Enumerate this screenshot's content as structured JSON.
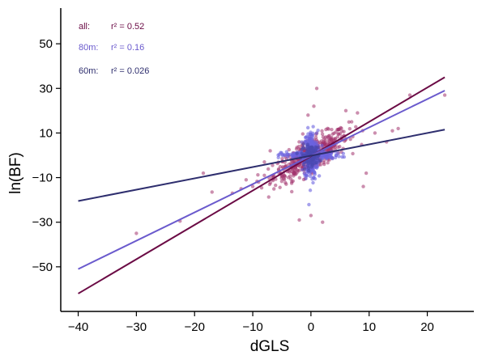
{
  "chart_data": {
    "type": "scatter",
    "xlabel": "dGLS",
    "ylabel": "ln(BF)",
    "xlim": [
      -43,
      28
    ],
    "ylim": [
      -70,
      66
    ],
    "xticks": [
      -40,
      -30,
      -20,
      -10,
      0,
      10,
      20
    ],
    "yticks": [
      -50,
      -30,
      -10,
      10,
      30,
      50
    ],
    "x_tick_labels": [
      "−40",
      "−30",
      "−20",
      "−10",
      "0",
      "10",
      "20"
    ],
    "y_tick_labels": [
      "−50",
      "−30",
      "−10",
      "10",
      "30",
      "50"
    ],
    "grid": false,
    "legend_position": "top-left",
    "colors": {
      "all": "#6b0b45",
      "all_points": "#a3336d",
      "m80": "#6a5acd",
      "m80_points": "#6b63e0",
      "m60": "#2e2e6e",
      "m60_points": "#4a48b0"
    },
    "legend": [
      {
        "label": "all:",
        "stat": "r² = 0.52",
        "color": "#6b0b45"
      },
      {
        "label": "80m:",
        "stat": "r² = 0.16",
        "color": "#6a5acd"
      },
      {
        "label": "60m:",
        "stat": "r² = 0.026",
        "color": "#2e2e6e"
      }
    ],
    "series": [
      {
        "name": "all",
        "r2": 0.52,
        "fit_line": {
          "x": [
            -40,
            23
          ],
          "y": [
            -62,
            35
          ]
        }
      },
      {
        "name": "80m",
        "r2": 0.16,
        "fit_line": {
          "x": [
            -40,
            23
          ],
          "y": [
            -51,
            29
          ]
        }
      },
      {
        "name": "60m",
        "r2": 0.026,
        "fit_line": {
          "x": [
            -40,
            23
          ],
          "y": [
            -20.5,
            11.5
          ]
        }
      }
    ],
    "outlier_points": [
      [
        -30,
        -35
      ],
      [
        -22.5,
        -29.5
      ],
      [
        -18.5,
        -8
      ],
      [
        -17,
        -16.5
      ],
      [
        -13.5,
        -17
      ],
      [
        -12,
        -15
      ],
      [
        -10,
        -14
      ],
      [
        -9,
        -12
      ],
      [
        -8,
        -9
      ],
      [
        9,
        -14
      ],
      [
        9.5,
        -8
      ],
      [
        17,
        27
      ],
      [
        23,
        27
      ],
      [
        11,
        10
      ],
      [
        13,
        6
      ],
      [
        14,
        11
      ],
      [
        15,
        12
      ],
      [
        1,
        30
      ],
      [
        0,
        -27
      ],
      [
        2,
        -30
      ],
      [
        -2,
        -29
      ],
      [
        -0.5,
        18
      ],
      [
        0.5,
        22
      ],
      [
        -7,
        2
      ],
      [
        -8,
        -3
      ],
      [
        8,
        19
      ],
      [
        6,
        20
      ],
      [
        7,
        15
      ]
    ]
  }
}
